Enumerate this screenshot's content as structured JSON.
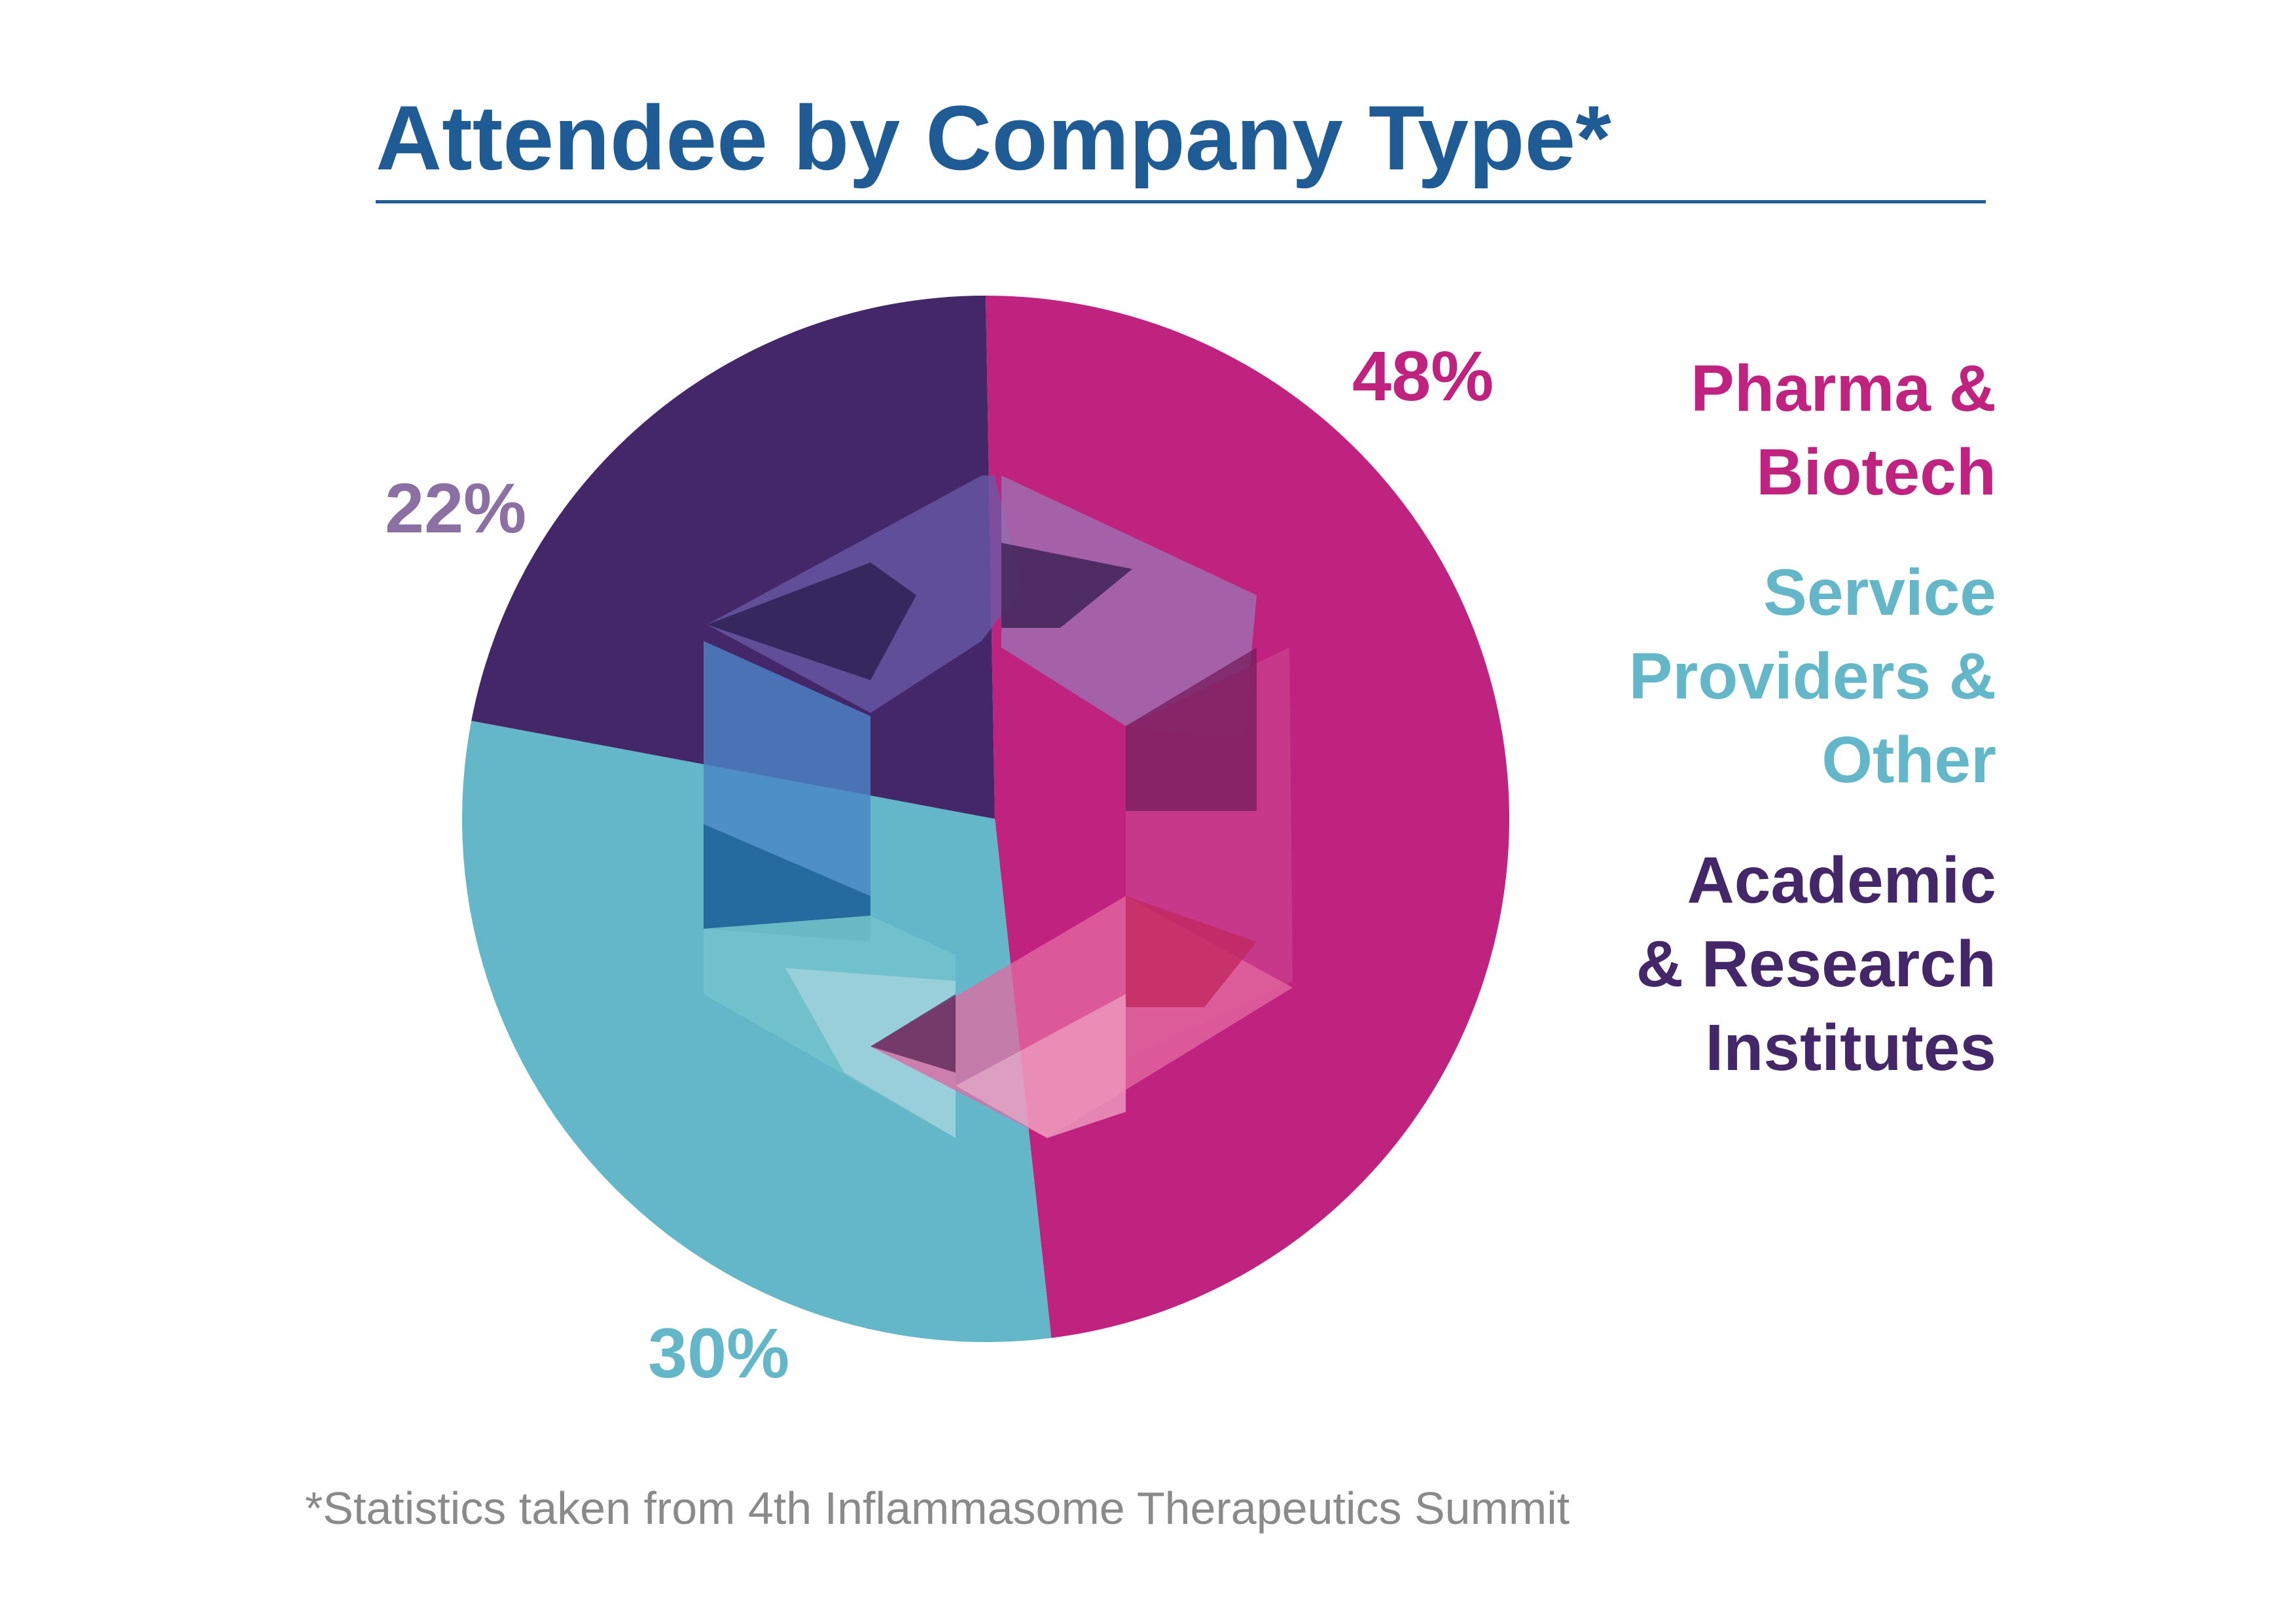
{
  "chart_data": {
    "type": "pie",
    "title": "Attendee by Company Type*",
    "slices": [
      {
        "label": "Pharma & Biotech",
        "value": 48,
        "value_label": "48%",
        "color": "#c0237f"
      },
      {
        "label": "Service Providers & Other",
        "value": 30,
        "value_label": "30%",
        "color": "#63b7c8"
      },
      {
        "label": "Academic & Research Institutes",
        "value": 22,
        "value_label": "22%",
        "color": "#432769"
      }
    ],
    "legend": {
      "placement": "right",
      "entries": [
        {
          "text": "Pharma &\nBiotech",
          "color": "#c0237f"
        },
        {
          "text": "Service\nProviders &\nOther",
          "color": "#63b7c8"
        },
        {
          "text": "Academic\n& Research\nInstitutes",
          "color": "#432769"
        }
      ]
    },
    "footnote": "*Statistics taken from 4th Inflammasome Therapeutics Summit",
    "decoration": "hexagon-logo-overlay"
  },
  "colors": {
    "title": "#1f5c95",
    "label_22": "#8c6fa3",
    "footnote": "#8a8a8a"
  }
}
